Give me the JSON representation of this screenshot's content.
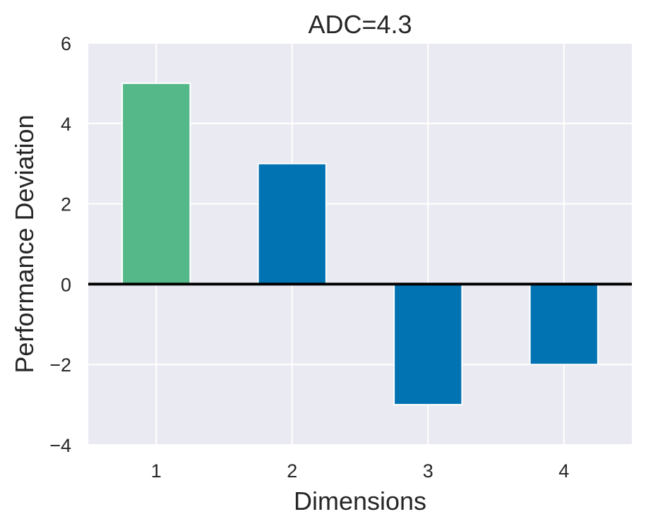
{
  "chart_data": {
    "type": "bar",
    "title": "ADC=4.3",
    "xlabel": "Dimensions",
    "ylabel": "Performance Deviation",
    "categories": [
      "1",
      "2",
      "3",
      "4"
    ],
    "values": [
      5,
      3,
      -3,
      -2
    ],
    "bar_colors": [
      "#55b888",
      "#0173b2",
      "#0173b2",
      "#0173b2"
    ],
    "ylim": [
      -4,
      6
    ],
    "yticks": [
      -4,
      -2,
      0,
      2,
      4,
      6
    ],
    "ytick_labels": [
      "−4",
      "−2",
      "0",
      "2",
      "4",
      "6"
    ],
    "zero_line": true,
    "grid": true,
    "background": "#eaeaf2",
    "grid_color": "#ffffff"
  }
}
